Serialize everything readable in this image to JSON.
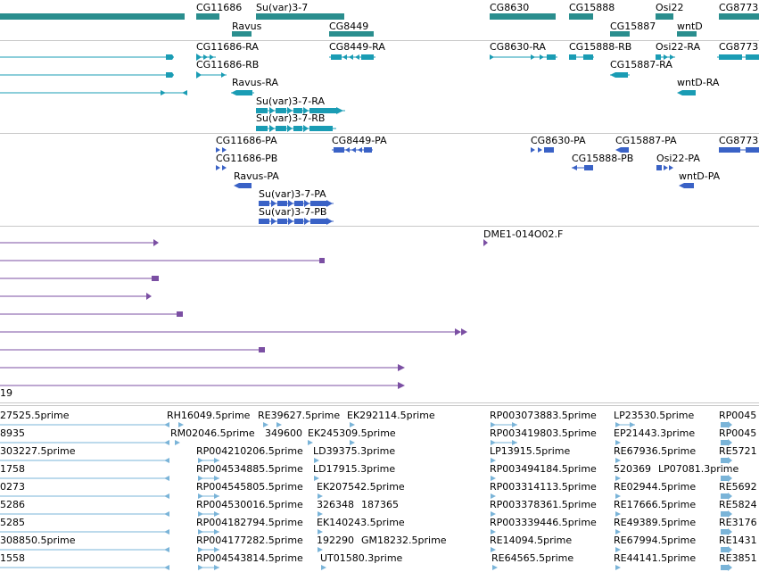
{
  "colors": {
    "gene": "#2a8e8e",
    "transcript": "#1a9cb4",
    "protein": "#3a62c6",
    "alignment": "#7b4fa3",
    "est": "#7ab4d8",
    "separator": "#c8c8c8"
  },
  "tracks": {
    "genes": {
      "labels": [
        "CG11686",
        "Su(var)3-7",
        "CG8630",
        "CG15888",
        "Osi22",
        "CG8773",
        "Ravus",
        "CG8449",
        "CG15887",
        "wntD"
      ]
    },
    "transcripts": {
      "labels": [
        "CG11686-RA",
        "CG8449-RA",
        "CG8630-RA",
        "CG15888-RB",
        "Osi22-RA",
        "CG8773",
        "CG11686-RB",
        "CG15887-RA",
        "Ravus-RA",
        "wntD-RA",
        "Su(var)3-7-RA",
        "Su(var)3-7-RB"
      ]
    },
    "proteins": {
      "labels": [
        "CG11686-PA",
        "CG8449-PA",
        "CG8630-PA",
        "CG15887-PA",
        "CG8773",
        "CG11686-PB",
        "CG15888-PB",
        "Osi22-PA",
        "Ravus-PA",
        "wntD-PA",
        "Su(var)3-7-PA",
        "Su(var)3-7-PB"
      ]
    },
    "alignments": {
      "labels": [
        "DME1-014O02.F",
        "19"
      ]
    },
    "ests": {
      "labels": [
        "27525.5prime",
        "RH16049.5prime",
        "RE39627.5prime",
        "EK292114.5prime",
        "RP003073883.5prime",
        "LP23530.5prime",
        "RP0045",
        "8935",
        "RM02046.5prime",
        "349600",
        "EK245309.5prime",
        "RP003419803.5prime",
        "EP21443.3prime",
        "RP0045",
        "303227.5prime",
        "RP004210206.5prime",
        "LD39375.3prime",
        "LP13915.5prime",
        "RE67936.5prime",
        "RE5721",
        "1758",
        "RP004534885.5prime",
        "LD17915.3prime",
        "RP003494184.5prime",
        "520369",
        "LP07081.3prime",
        "0273",
        "RP004545805.5prime",
        "EK207542.5prime",
        "RP003314113.5prime",
        "RE02944.5prime",
        "RE5692",
        "5286",
        "RP004530016.5prime",
        "326348",
        "187365",
        "RP003378361.5prime",
        "RE17666.5prime",
        "RE5824",
        "5285",
        "RP004182794.5prime",
        "EK140243.5prime",
        "RP003339446.5prime",
        "RE49389.5prime",
        "RE3176",
        "308850.5prime",
        "RP004177282.5prime",
        "192290",
        "GM18232.5prime",
        "RE14094.5prime",
        "RE67994.5prime",
        "RE1431",
        "1558",
        "RP004543814.5prime",
        "UT01580.3prime",
        "RE64565.5prime",
        "RE44141.5prime",
        "RE3851"
      ]
    }
  }
}
